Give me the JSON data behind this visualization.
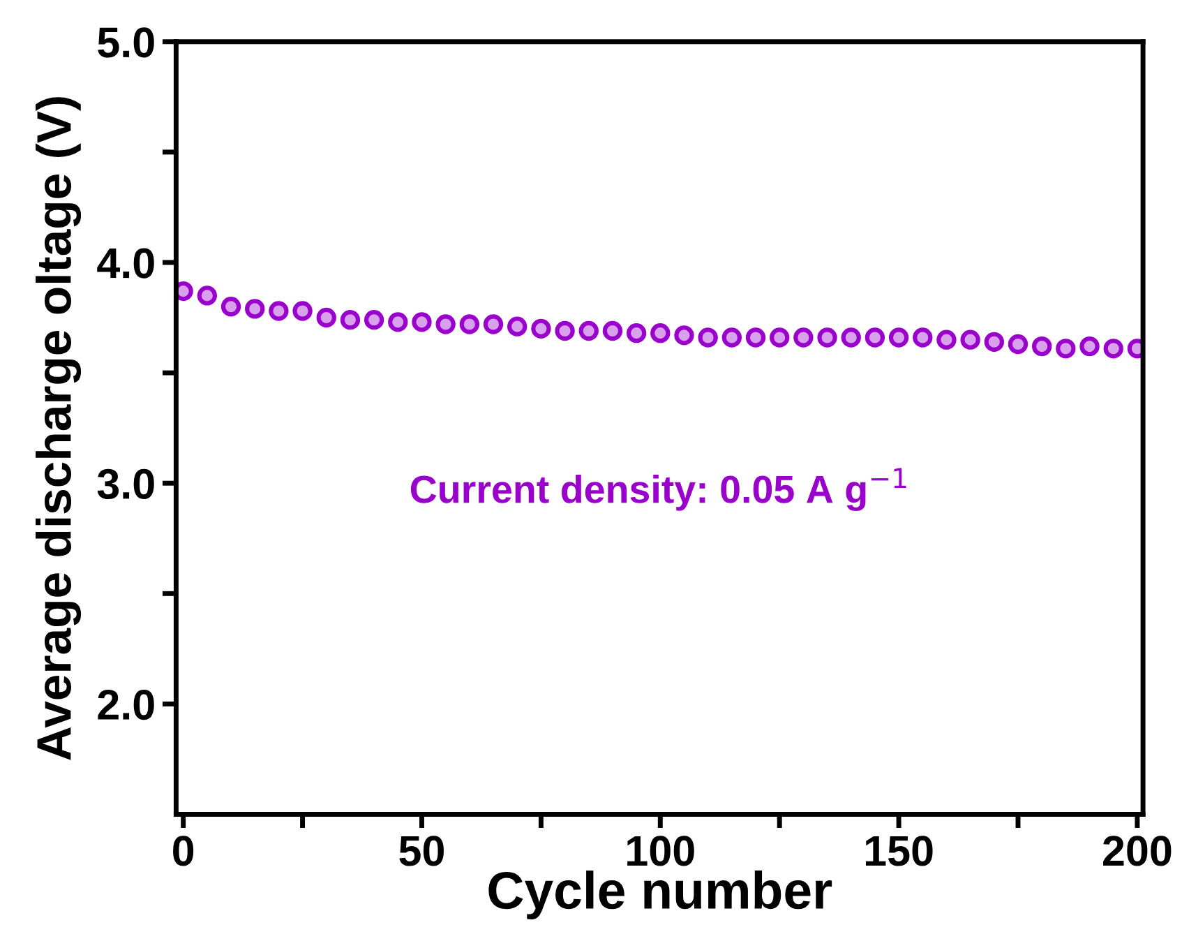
{
  "chart_data": {
    "type": "scatter",
    "xlabel": "Cycle number",
    "ylabel": "Average discharge oltage (V)",
    "annotations": [
      "Current density: 0.05 A g$^{−1}$"
    ],
    "x": [
      0,
      5,
      10,
      15,
      20,
      25,
      30,
      35,
      40,
      45,
      50,
      55,
      60,
      65,
      70,
      75,
      80,
      85,
      90,
      95,
      100,
      105,
      110,
      115,
      120,
      125,
      130,
      135,
      140,
      145,
      150,
      155,
      160,
      165,
      170,
      175,
      180,
      185,
      190,
      195,
      200
    ],
    "series": [
      {
        "color": "#9900cc",
        "values": [
          3.87,
          3.85,
          3.8,
          3.79,
          3.78,
          3.78,
          3.75,
          3.74,
          3.74,
          3.73,
          3.73,
          3.72,
          3.72,
          3.72,
          3.71,
          3.7,
          3.69,
          3.69,
          3.69,
          3.68,
          3.68,
          3.67,
          3.66,
          3.66,
          3.66,
          3.66,
          3.66,
          3.66,
          3.66,
          3.66,
          3.66,
          3.66,
          3.65,
          3.65,
          3.64,
          3.63,
          3.62,
          3.61,
          3.62,
          3.61,
          3.61
        ]
      }
    ],
    "marker": "circle",
    "xlim": [
      -1.5,
      201.2
    ],
    "ylim": [
      1.5,
      5.0
    ],
    "xticks": [
      0,
      {
        "value": 25,
        "label": null
      },
      50,
      {
        "value": 75,
        "label": null
      },
      100,
      {
        "value": 125,
        "label": null
      },
      150,
      {
        "value": 175,
        "label": null
      },
      200
    ],
    "yticks": [
      {
        "value": 2.0,
        "label": "2.0"
      },
      {
        "value": 2.5,
        "label": null
      },
      {
        "value": 3.0,
        "label": "3.0"
      },
      {
        "value": 3.5,
        "label": null
      },
      {
        "value": 4.0,
        "label": "4.0"
      },
      {
        "value": 4.5,
        "label": null
      },
      {
        "value": 5.0,
        "label": "5.0"
      }
    ],
    "grid": false,
    "legend": false
  }
}
